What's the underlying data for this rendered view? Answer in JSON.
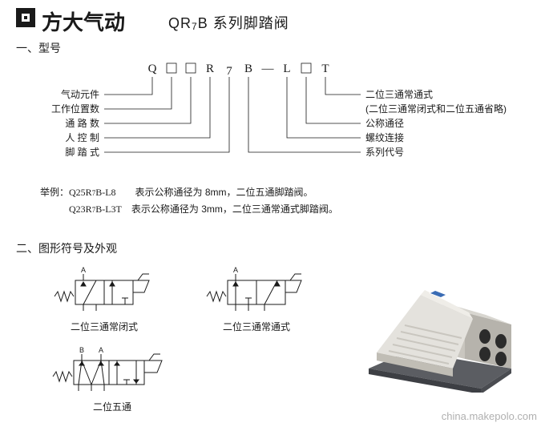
{
  "header": {
    "brand": "方大气动",
    "series": "QR₇B 系列脚踏阀"
  },
  "section1_title": "一、型号",
  "section2_title": "二、图形符号及外观",
  "model": {
    "chars": [
      "Q",
      "□",
      "□",
      "R",
      "7",
      "B",
      "—",
      "L",
      "□",
      "T"
    ],
    "left_labels": [
      "气动元件",
      "工作位置数",
      "通 路 数",
      "人 控 制",
      "脚 踏 式"
    ],
    "right_labels": [
      "二位三通常通式",
      "(二位三通常闭式和二位五通省略)",
      "公称通径",
      "螺纹连接",
      "系列代号"
    ]
  },
  "examples": {
    "prefix": "举例：",
    "line1_code": "Q25R₇B-L8",
    "line1_text": "表示公称通径为 8mm，二位五通脚踏阀。",
    "line2_code": "Q23R₇B-L3T",
    "line2_text": "表示公称通径为 3mm，二位三通常通式脚踏阀。"
  },
  "symbols": {
    "s1_label": "二位三通常闭式",
    "s2_label": "二位三通常通式",
    "s3_label": "二位五通"
  },
  "watermark": "china.makepolo.com",
  "colors": {
    "text": "#1a1a1a",
    "pedal_body": "#e4e2dd",
    "pedal_shadow": "#b6b3ac",
    "pedal_base": "#5b5d62",
    "pedal_logo": "#3a6cb4"
  }
}
